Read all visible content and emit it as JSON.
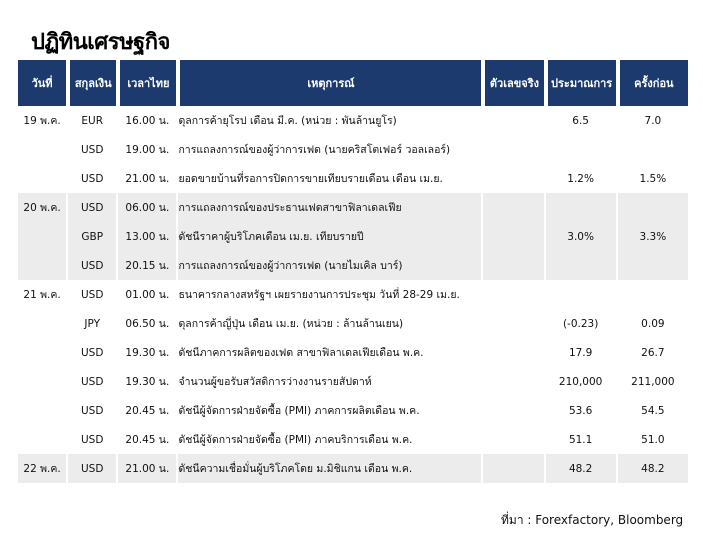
{
  "title": "ปฏิทินเศรษฐกิจ",
  "headers": [
    "วันที่",
    "สกุลเงิน",
    "เวลาไทย",
    "เหตุการณ์",
    "ตัวเลขจริง",
    "ประมาณการ",
    "ครั้งก่อน"
  ],
  "rows": [
    {
      "date": "19 พ.ค.",
      "currency": "EUR",
      "time": "16.00 น.",
      "event": "ดุลการค้ายุโรป เดือน มี.ค. (หน่วย : พันล้านยูโร)",
      "actual": "",
      "forecast": "6.5",
      "previous": "7.0"
    },
    {
      "date": "",
      "currency": "USD",
      "time": "19.00 น.",
      "event": "การแถลงการณ์ของผู้ว่าการเฟด (นายคริสโตเฟอร์ วอลเลอร์)",
      "actual": "",
      "forecast": "",
      "previous": ""
    },
    {
      "date": "",
      "currency": "USD",
      "time": "21.00 น.",
      "event": "ยอดขายบ้านที่รอการปิดการขายเทียบรายเดือน เดือน เม.ย.",
      "actual": "",
      "forecast": "1.2%",
      "previous": "1.5%"
    },
    {
      "date": "20 พ.ค.",
      "currency": "USD",
      "time": "06.00 น.",
      "event": "การแถลงการณ์ของประธานเฟดสาขาฟิลาเดลเฟีย",
      "actual": "",
      "forecast": "",
      "previous": ""
    },
    {
      "date": "",
      "currency": "GBP",
      "time": "13.00 น.",
      "event": "ดัชนีราคาผู้บริโภคเดือน เม.ย. เทียบรายปี",
      "actual": "",
      "forecast": "3.0%",
      "previous": "3.3%"
    },
    {
      "date": "",
      "currency": "USD",
      "time": "20.15 น.",
      "event": "การแถลงการณ์ของผู้ว่าการเฟด (นายไมเคิล บาร์)",
      "actual": "",
      "forecast": "",
      "previous": ""
    },
    {
      "date": "21 พ.ค.",
      "currency": "USD",
      "time": "01.00 น.",
      "event": "ธนาคารกลางสหรัฐฯ เผยรายงานการประชุม วันที่ 28-29 เม.ย.",
      "actual": "",
      "forecast": "",
      "previous": ""
    },
    {
      "date": "",
      "currency": "JPY",
      "time": "06.50 น.",
      "event": "ดุลการค้าญี่ปุ่น เดือน เม.ย. (หน่วย : ล้านล้านเยน)",
      "actual": "",
      "forecast": "(-0.23)",
      "previous": "0.09"
    },
    {
      "date": "",
      "currency": "USD",
      "time": "19.30 น.",
      "event": "ดัชนีภาคการผลิตของเฟด สาขาฟิลาเดลเฟียเดือน พ.ค.",
      "actual": "",
      "forecast": "17.9",
      "previous": "26.7"
    },
    {
      "date": "",
      "currency": "USD",
      "time": "19.30 น.",
      "event": "จำนวนผู้ขอรับสวัสดิการว่างงานรายสัปดาห์",
      "actual": "",
      "forecast": "210,000",
      "previous": "211,000"
    },
    {
      "date": "",
      "currency": "USD",
      "time": "20.45 น.",
      "event": "ดัชนีผู้จัดการฝ่ายจัดซื้อ (PMI) ภาคการผลิตเดือน พ.ค.",
      "actual": "",
      "forecast": "53.6",
      "previous": "54.5"
    },
    {
      "date": "",
      "currency": "USD",
      "time": "20.45 น.",
      "event": "ดัชนีผู้จัดการฝ่ายจัดซื้อ (PMI) ภาคบริการเดือน พ.ค.",
      "actual": "",
      "forecast": "51.1",
      "previous": "51.0"
    },
    {
      "date": "22 พ.ค.",
      "currency": "USD",
      "time": "21.00 น.",
      "event": "ดัชนีความเชื่อมั่นผู้บริโภคโดย ม.มิชิแกน เดือน พ.ค.",
      "actual": "",
      "forecast": "48.2",
      "previous": "48.2"
    }
  ],
  "shaded_rows": [
    3,
    4,
    5,
    12
  ],
  "source": "ที่มา : Forexfactory, Bloomberg",
  "colors": {
    "header_bg": "#1c3a6e",
    "header_text": "#ffffff",
    "shade": "#ececec"
  }
}
